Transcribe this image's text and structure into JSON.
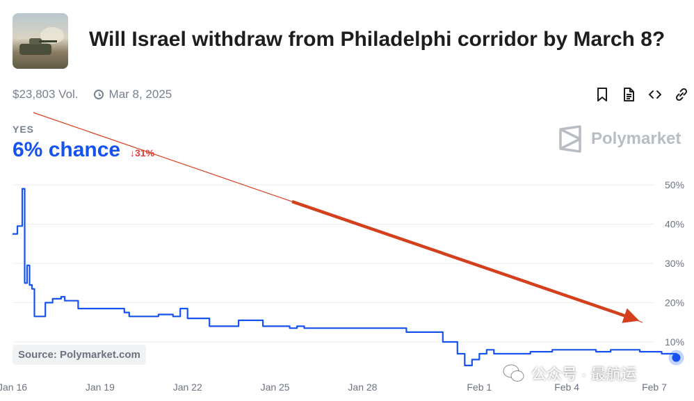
{
  "header": {
    "title": "Will Israel withdraw from Philadelphi corridor by March 8?",
    "volume": "$23,803 Vol.",
    "end_date": "Mar 8, 2025"
  },
  "icons": [
    "bookmark-icon",
    "document-icon",
    "embed-code-icon",
    "link-icon"
  ],
  "outcome": {
    "label": "YES",
    "chance": "6% chance",
    "change": "↓31%",
    "change_color": "#e23939"
  },
  "brand": {
    "name": "Polymarket"
  },
  "source": "Source: Polymarket.com",
  "watermark": "公众号 · 最航运",
  "colors": {
    "line": "#1652f0",
    "arrow": "#d4401d"
  },
  "chart_data": {
    "type": "line",
    "title": "",
    "xlabel": "",
    "ylabel": "",
    "x_ticks": [
      "Jan 16",
      "Jan 19",
      "Jan 22",
      "Jan 25",
      "Jan 28",
      "Feb 1",
      "Feb 4",
      "Feb 7"
    ],
    "y_ticks": [
      "10%",
      "20%",
      "30%",
      "40%",
      "50%"
    ],
    "ylim": [
      0,
      50
    ],
    "grid": true,
    "x_range": [
      "Jan 16",
      "Feb 7"
    ],
    "series": [
      {
        "points": [
          [
            "Jan 16 00:00",
            37.5
          ],
          [
            "Jan 16 04:00",
            39.5
          ],
          [
            "Jan 16 06:00",
            39.5
          ],
          [
            "Jan 16 08:00",
            49
          ],
          [
            "Jan 16 10:00",
            25
          ],
          [
            "Jan 16 12:00",
            29.5
          ],
          [
            "Jan 16 14:00",
            24.5
          ],
          [
            "Jan 16 16:00",
            23.5
          ],
          [
            "Jan 16 18:00",
            16.5
          ],
          [
            "Jan 17 00:00",
            16.5
          ],
          [
            "Jan 17 03:00",
            20
          ],
          [
            "Jan 17 06:00",
            20
          ],
          [
            "Jan 17 09:00",
            21
          ],
          [
            "Jan 17 16:00",
            21.5
          ],
          [
            "Jan 17 19:00",
            20.5
          ],
          [
            "Jan 18 00:00",
            20.5
          ],
          [
            "Jan 18 06:00",
            18.5
          ],
          [
            "Jan 19 14:00",
            18.5
          ],
          [
            "Jan 19 20:00",
            17.5
          ],
          [
            "Jan 20 00:00",
            16.5
          ],
          [
            "Jan 21 00:00",
            17
          ],
          [
            "Jan 21 12:00",
            16.5
          ],
          [
            "Jan 21 18:00",
            18.5
          ],
          [
            "Jan 22 00:00",
            16
          ],
          [
            "Jan 22 12:00",
            16
          ],
          [
            "Jan 22 18:00",
            14
          ],
          [
            "Jan 23 12:00",
            14
          ],
          [
            "Jan 23 18:00",
            15.5
          ],
          [
            "Jan 24 06:00",
            15.5
          ],
          [
            "Jan 24 14:00",
            14
          ],
          [
            "Jan 25 06:00",
            14
          ],
          [
            "Jan 25 12:00",
            13.5
          ],
          [
            "Jan 25 18:00",
            14
          ],
          [
            "Jan 26 00:00",
            13.5
          ],
          [
            "Jan 29 06:00",
            13.5
          ],
          [
            "Jan 29 12:00",
            12.5
          ],
          [
            "Jan 30 12:00",
            12.5
          ],
          [
            "Jan 30 18:00",
            10
          ],
          [
            "Jan 31 00:00",
            10
          ],
          [
            "Jan 31 06:00",
            7
          ],
          [
            "Jan 31 12:00",
            4
          ],
          [
            "Jan 31 18:00",
            5.5
          ],
          [
            "Feb 1 00:00",
            7
          ],
          [
            "Feb 1 06:00",
            8
          ],
          [
            "Feb 1 12:00",
            7
          ],
          [
            "Feb 2 00:00",
            7
          ],
          [
            "Feb 2 12:00",
            7
          ],
          [
            "Feb 2 18:00",
            7.5
          ],
          [
            "Feb 3 00:00",
            7.5
          ],
          [
            "Feb 3 12:00",
            8
          ],
          [
            "Feb 4 00:00",
            8
          ],
          [
            "Feb 5 00:00",
            7.5
          ],
          [
            "Feb 5 12:00",
            8
          ],
          [
            "Feb 6 00:00",
            8
          ],
          [
            "Feb 6 12:00",
            7.5
          ],
          [
            "Feb 7 06:00",
            7
          ],
          [
            "Feb 7 18:00",
            6
          ]
        ]
      }
    ]
  }
}
